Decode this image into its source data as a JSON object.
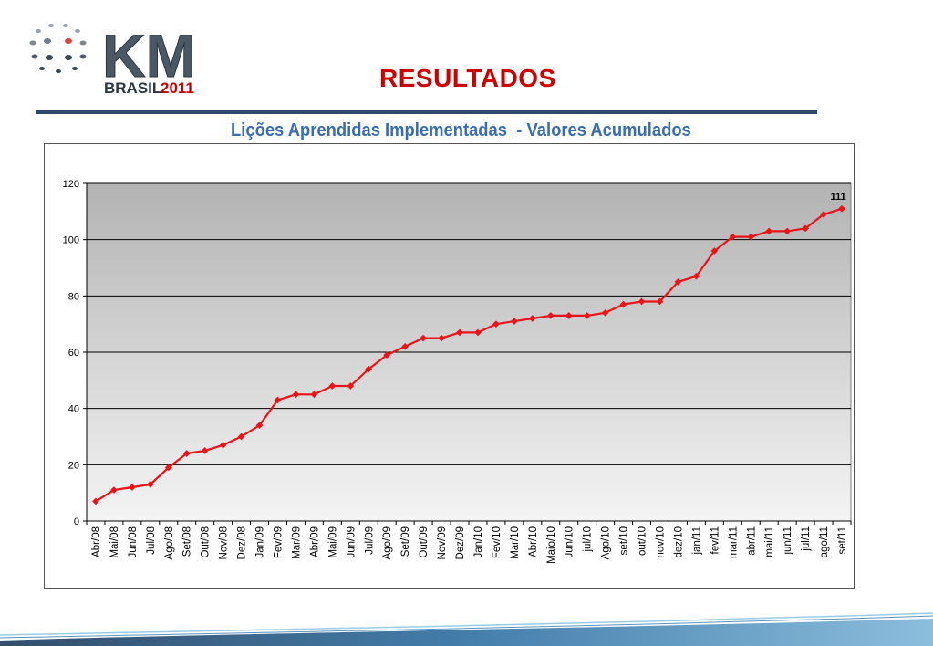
{
  "header": {
    "logo_text": "KM",
    "logo_subtext": "BRASIL",
    "logo_year": "2011",
    "title": "RESULTADOS"
  },
  "colors": {
    "title_red": "#cc0000",
    "chart_title_blue": "#3a6db0",
    "series_red": "#e8141a",
    "rule_navy": "#2d4a6b"
  },
  "chart_data": {
    "type": "line",
    "title": "Lições Aprendidas Implementadas  - Valores Acumulados",
    "xlabel": "",
    "ylabel": "",
    "ylim": [
      0,
      120
    ],
    "yticks": [
      0,
      20,
      40,
      60,
      80,
      100,
      120
    ],
    "grid": true,
    "legend": "none",
    "categories": [
      "Abr/08",
      "Mai/08",
      "Jun/08",
      "Jul/08",
      "Ago/08",
      "Set/08",
      "Out/08",
      "Nov/08",
      "Dez/08",
      "Jan/09",
      "Fev/09",
      "Mar/09",
      "Abr/09",
      "Mai/09",
      "Jun/09",
      "Jul/09",
      "Ago/09",
      "Set/09",
      "Out/09",
      "Nov/09",
      "Dez/09",
      "Jan/10",
      "Fev/10",
      "Mar/10",
      "Abr/10",
      "Maio/10",
      "Jun/10",
      "jul/10",
      "Ago/10",
      "set/10",
      "out/10",
      "nov/10",
      "dez/10",
      "jan/11",
      "fev/11",
      "mar/11",
      "abr/11",
      "mai/11",
      "jun/11",
      "jul/11",
      "ago/11",
      "set/11"
    ],
    "series": [
      {
        "values": [
          7,
          11,
          12,
          13,
          19,
          24,
          25,
          27,
          30,
          34,
          43,
          45,
          45,
          48,
          48,
          54,
          59,
          62,
          65,
          65,
          67,
          67,
          70,
          71,
          72,
          73,
          73,
          73,
          74,
          77,
          78,
          78,
          85,
          87,
          96,
          101,
          101,
          103,
          103,
          104,
          109,
          111
        ]
      }
    ],
    "annotations": [
      {
        "text": "111",
        "category": "set/11",
        "value": 111
      }
    ]
  }
}
